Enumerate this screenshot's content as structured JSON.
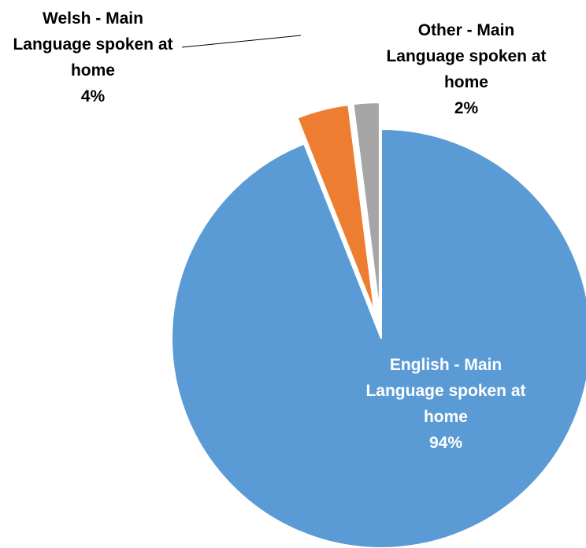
{
  "chart_data": {
    "type": "pie",
    "title": "",
    "slices": [
      {
        "name": "English - Main Language spoken at home",
        "value": 94,
        "label_lines": [
          "English - Main",
          "Language spoken at",
          "home",
          "94%"
        ],
        "color": "#5B9BD5",
        "label_color": "#FFFFFF"
      },
      {
        "name": "Welsh - Main Language spoken at home",
        "value": 4,
        "label_lines": [
          "Welsh - Main",
          "Language spoken at",
          "home",
          "4%"
        ],
        "color": "#ED7D31",
        "label_color": "#000000"
      },
      {
        "name": "Other - Main Language spoken at home",
        "value": 2,
        "label_lines": [
          "Other - Main",
          "Language spoken at",
          "home",
          "2%"
        ],
        "color": "#A5A5A5",
        "label_color": "#000000"
      }
    ],
    "legend": "none",
    "exploded": true
  }
}
